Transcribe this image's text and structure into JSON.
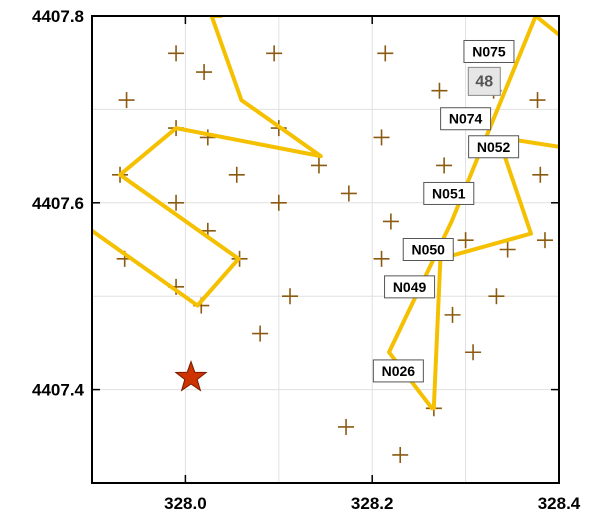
{
  "chart_data": {
    "type": "scatter",
    "title": "",
    "xlabel": "",
    "ylabel": "",
    "xlim": [
      327.9,
      328.4
    ],
    "ylim": [
      4407.3,
      4407.8
    ],
    "x_ticks": [
      328.0,
      328.2,
      328.4
    ],
    "x_tick_labels": [
      "328.0",
      "328.2",
      "328.4"
    ],
    "y_ticks": [
      4407.4,
      4407.6,
      4407.8
    ],
    "y_tick_labels": [
      "4407.4",
      "4407.6",
      "4407.8"
    ],
    "grid": true,
    "colors": {
      "markers": "#8b5a10",
      "track": "#f5c000",
      "star": "#cc3300",
      "axes": "#000000",
      "grid": "#e0e0e0"
    },
    "markers": [
      [
        327.937,
        4407.71
      ],
      [
        327.99,
        4407.76
      ],
      [
        328.02,
        4407.74
      ],
      [
        328.095,
        4407.76
      ],
      [
        328.214,
        4407.76
      ],
      [
        328.32,
        4407.76
      ],
      [
        328.33,
        4407.72
      ],
      [
        328.377,
        4407.71
      ],
      [
        327.99,
        4407.68
      ],
      [
        328.024,
        4407.67
      ],
      [
        328.1,
        4407.68
      ],
      [
        328.21,
        4407.67
      ],
      [
        328.272,
        4407.72
      ],
      [
        328.3,
        4407.69
      ],
      [
        328.33,
        4407.66
      ],
      [
        327.93,
        4407.63
      ],
      [
        328.055,
        4407.63
      ],
      [
        328.143,
        4407.64
      ],
      [
        328.277,
        4407.64
      ],
      [
        328.38,
        4407.63
      ],
      [
        327.99,
        4407.6
      ],
      [
        328.1,
        4407.6
      ],
      [
        328.175,
        4407.61
      ],
      [
        328.285,
        4407.61
      ],
      [
        328.22,
        4407.58
      ],
      [
        328.024,
        4407.57
      ],
      [
        328.3,
        4407.56
      ],
      [
        328.345,
        4407.55
      ],
      [
        328.385,
        4407.56
      ],
      [
        327.935,
        4407.54
      ],
      [
        328.058,
        4407.54
      ],
      [
        328.21,
        4407.54
      ],
      [
        328.262,
        4407.55
      ],
      [
        327.99,
        4407.51
      ],
      [
        328.112,
        4407.5
      ],
      [
        328.242,
        4407.51
      ],
      [
        328.333,
        4407.5
      ],
      [
        328.017,
        4407.49
      ],
      [
        328.286,
        4407.48
      ],
      [
        328.08,
        4407.46
      ],
      [
        328.308,
        4407.44
      ],
      [
        328.232,
        4407.42
      ],
      [
        328.266,
        4407.38
      ],
      [
        328.172,
        4407.36
      ],
      [
        328.23,
        4407.33
      ]
    ],
    "tracks": [
      [
        [
          327.9,
          4407.57
        ],
        [
          328.013,
          4407.49
        ],
        [
          328.057,
          4407.54
        ],
        [
          327.93,
          4407.63
        ],
        [
          327.99,
          4407.68
        ],
        [
          328.145,
          4407.65
        ],
        [
          328.06,
          4407.71
        ],
        [
          328.028,
          4407.8
        ],
        [
          328.038,
          4407.8
        ]
      ],
      [
        [
          328.264,
          4407.38
        ],
        [
          328.218,
          4407.44
        ],
        [
          328.285,
          4407.58
        ],
        [
          328.375,
          4407.8
        ],
        [
          328.4,
          4407.78
        ]
      ],
      [
        [
          328.266,
          4407.38
        ],
        [
          328.273,
          4407.54
        ],
        [
          328.37,
          4407.567
        ],
        [
          328.335,
          4407.67
        ],
        [
          328.4,
          4407.66
        ]
      ]
    ],
    "star": [
      328.006,
      4407.413
    ],
    "annotations": [
      {
        "text": "N075",
        "x": 328.325,
        "y": 4407.762,
        "style": "box"
      },
      {
        "text": "48",
        "x": 328.32,
        "y": 4407.73,
        "style": "gray"
      },
      {
        "text": "N074",
        "x": 328.3,
        "y": 4407.69,
        "style": "box"
      },
      {
        "text": "N052",
        "x": 328.33,
        "y": 4407.66,
        "style": "box"
      },
      {
        "text": "N051",
        "x": 328.282,
        "y": 4407.61,
        "style": "box"
      },
      {
        "text": "N050",
        "x": 328.26,
        "y": 4407.55,
        "style": "box"
      },
      {
        "text": "N049",
        "x": 328.24,
        "y": 4407.51,
        "style": "box"
      },
      {
        "text": "N026",
        "x": 328.228,
        "y": 4407.42,
        "style": "box"
      }
    ]
  }
}
